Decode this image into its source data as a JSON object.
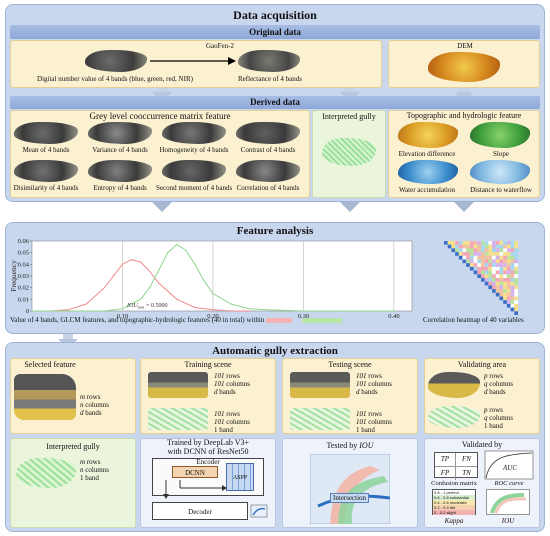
{
  "title": "Data acquisition",
  "original": {
    "header": "Original data",
    "gaofen_label": "GaoFen-2",
    "dn_label": "Digital number value of 4 bands (blue, green, red, NIR)",
    "reflectance_label": "Reflectance of 4 bands",
    "dem_label": "DEM"
  },
  "derived": {
    "header": "Derived data",
    "glcm_header": "Grey level cooccurrence matrix feature",
    "glcm_items": [
      "Mean of 4 bands",
      "Variance of 4 bands",
      "Homogeneity of 4 bands",
      "Contrast of 4 bands",
      "Disimilarity of 4 bands",
      "Entropy of 4 bands",
      "Second moment of 4 bands",
      "Correlation of 4 bands"
    ],
    "interpreted_gully": "Interpreted gully",
    "topo_header": "Topographic and hydrologic feature",
    "topo_items": [
      "Elevation difference",
      "Slope",
      "Water accumulation",
      "Distance to waterflow"
    ]
  },
  "feature_analysis": {
    "header": "Feature analysis",
    "y_label": "Frequency",
    "y_ticks": [
      "0.06",
      "0.05",
      "0.04",
      "0.03",
      "0.02",
      "0.01",
      "0"
    ],
    "x_ticks": [
      "0.10",
      "0.20",
      "0.30",
      "0.40"
    ],
    "iou_text": "IOU",
    "iou_sub": "max",
    "iou_value": " = 0.5000",
    "caption_main": "Value of 4 bands, GLCM features, and topographic-hydrologic features (40 in total)  within",
    "caption_right": "Correlation heatmap of 40 variables"
  },
  "chart_data": {
    "type": "line",
    "ylabel": "Frequency",
    "ylim": [
      0,
      0.06
    ],
    "xlim": [
      0,
      0.42
    ],
    "x_ticks": [
      0.1,
      0.2,
      0.3,
      0.4
    ],
    "series": [
      {
        "color": "#f08a8a",
        "x": [
          0.0,
          0.02,
          0.04,
          0.06,
          0.08,
          0.09,
          0.1,
          0.11,
          0.12,
          0.13,
          0.14,
          0.16,
          0.18,
          0.2,
          0.22,
          0.24
        ],
        "values": [
          0,
          0,
          0.001,
          0.006,
          0.02,
          0.03,
          0.04,
          0.044,
          0.042,
          0.034,
          0.024,
          0.01,
          0.003,
          0.001,
          0,
          0
        ]
      },
      {
        "color": "#8fd68f",
        "x": [
          0.0,
          0.08,
          0.1,
          0.12,
          0.13,
          0.14,
          0.15,
          0.16,
          0.17,
          0.18,
          0.19,
          0.2,
          0.22,
          0.24,
          0.26,
          0.3,
          0.4
        ],
        "values": [
          0,
          0,
          0.002,
          0.01,
          0.02,
          0.035,
          0.05,
          0.057,
          0.052,
          0.04,
          0.026,
          0.015,
          0.006,
          0.002,
          0.001,
          0,
          0
        ]
      }
    ]
  },
  "gully_extraction": {
    "header": "Automatic gully extraction",
    "selected_feature": "Selected feature",
    "sf_rows": "rows",
    "sf_rows_var": "m",
    "sf_cols": "columns",
    "sf_cols_var": "n",
    "sf_bands": "bands",
    "sf_bands_var": "d",
    "training_scene": "Training scene",
    "tr_rows": "rows",
    "tr_rows_var": "101",
    "tr_cols": "columns",
    "tr_cols_var": "101",
    "tr_bands": "bands",
    "tr_bands_var": "d",
    "tr2_rows_var": "101",
    "tr2_rows": "rows",
    "tr2_cols_var": "101",
    "tr2_cols": "columns",
    "tr2_bands": "1 band",
    "testing_scene": "Testing scene",
    "te_rows_var": "101",
    "te_rows": "rows",
    "te_cols_var": "101",
    "te_cols": "columns",
    "te_bands_var": "d",
    "te_bands": "bands",
    "te2_rows_var": "101",
    "te2_rows": "rows",
    "te2_cols_var": "101",
    "te2_cols": "columns",
    "te2_bands": "1 band",
    "validating_area": "Validating area",
    "va_rows_var": "p",
    "va_rows": "rows",
    "va_cols_var": "q",
    "va_cols": "columns",
    "va_bands_var": "d",
    "va_bands": "bands",
    "va2_rows_var": "p",
    "va2_rows": "rows",
    "va2_cols_var": "q",
    "va2_cols": "columns",
    "va2_bands": "1 band",
    "interpreted_gully": "Interpreted gully",
    "ig_rows_var": "m",
    "ig_rows": "rows",
    "ig_cols_var": "n",
    "ig_cols": "columns",
    "ig_bands": "1 band",
    "trained_by_1": "Trained by DeepLab V3+",
    "trained_by_2": "with DCNN of ResNet50",
    "encoder": "Encoder",
    "dcnn": "DCNN",
    "aspp": "ASPP",
    "decoder": "Decoder",
    "tested_by": "Tested by ",
    "tested_iou": "IOU",
    "intersection": "Intersection",
    "validated_by": "Validated by",
    "tp": "TP",
    "fn": "FN",
    "fp": "FP",
    "tn": "TN",
    "auc": "AUC",
    "confusion_matrix": "Confusion matrix",
    "roc_curve": "ROC curve",
    "kappa": "Kappa",
    "iou": "IOU",
    "kappa_items": [
      "0.8 - 1  perfect",
      "0.6 - 0.8  substantial",
      "0.4 - 0.6  moderate",
      "0.2 - 0.4  fair",
      "0 - 0.2  slight"
    ]
  },
  "colors": {
    "section_bg": "#c8d7ee",
    "inner_bg": "#fbf0d0",
    "red_curve": "#f08a8a",
    "green_curve": "#8fd68f"
  }
}
